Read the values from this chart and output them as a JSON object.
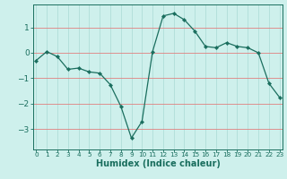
{
  "x": [
    0,
    1,
    2,
    3,
    4,
    5,
    6,
    7,
    8,
    9,
    10,
    11,
    12,
    13,
    14,
    15,
    16,
    17,
    18,
    19,
    20,
    21,
    22,
    23
  ],
  "y": [
    -0.3,
    0.05,
    -0.15,
    -0.65,
    -0.6,
    -0.75,
    -0.8,
    -1.25,
    -2.1,
    -3.35,
    -2.7,
    0.05,
    1.45,
    1.55,
    1.3,
    0.85,
    0.25,
    0.2,
    0.4,
    0.25,
    0.2,
    0.0,
    -1.2,
    -1.75
  ],
  "line_color": "#1a6e5e",
  "bg_color": "#cef0ec",
  "grid_color_major": "#b0ddd8",
  "grid_color_minor": "#f08080",
  "tick_color": "#1a6e5e",
  "xlabel": "Humidex (Indice chaleur)",
  "yticks": [
    -3,
    -2,
    -1,
    0,
    1
  ],
  "xticks": [
    0,
    1,
    2,
    3,
    4,
    5,
    6,
    7,
    8,
    9,
    10,
    11,
    12,
    13,
    14,
    15,
    16,
    17,
    18,
    19,
    20,
    21,
    22,
    23
  ],
  "ylim": [
    -3.8,
    1.9
  ],
  "xlim": [
    -0.3,
    23.3
  ],
  "xlabel_fontsize": 7.0,
  "ytick_fontsize": 6.5,
  "xtick_fontsize": 5.2,
  "marker_size": 2.2,
  "line_width": 0.9
}
